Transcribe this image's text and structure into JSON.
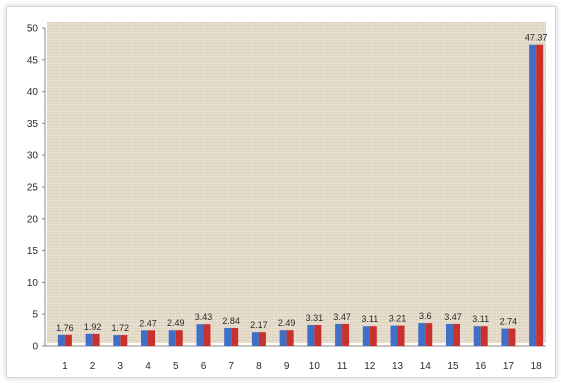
{
  "chart_data": {
    "type": "bar",
    "categories": [
      "1",
      "2",
      "3",
      "4",
      "5",
      "6",
      "7",
      "8",
      "9",
      "10",
      "11",
      "12",
      "13",
      "14",
      "15",
      "16",
      "17",
      "18"
    ],
    "series": [
      {
        "values": [
          1.76,
          1.92,
          1.72,
          2.47,
          2.49,
          3.43,
          2.84,
          2.17,
          2.49,
          3.31,
          3.47,
          3.11,
          3.21,
          3.6,
          3.47,
          3.11,
          2.74,
          47.37
        ]
      },
      {
        "values": [
          1.76,
          1.92,
          1.72,
          2.47,
          2.49,
          3.43,
          2.84,
          2.17,
          2.49,
          3.31,
          3.47,
          3.11,
          3.21,
          3.6,
          3.47,
          3.11,
          2.74,
          47.37
        ]
      }
    ],
    "data_labels": [
      "1.76",
      "1.92",
      "1.72",
      "2.47",
      "2.49",
      "3.43",
      "2.84",
      "2.17",
      "2.49",
      "3.31",
      "3.47",
      "3.11",
      "3.21",
      "3.6",
      "3.47",
      "3.11",
      "2.74",
      "47.37"
    ],
    "ylim": [
      0,
      50
    ],
    "yticks": [
      0,
      5,
      10,
      15,
      20,
      25,
      30,
      35,
      40,
      45,
      50
    ],
    "grid": false,
    "colors": {
      "series1": "#3f6fc6",
      "series2": "#c9312e",
      "plot_bg": "#e6dccb"
    }
  }
}
